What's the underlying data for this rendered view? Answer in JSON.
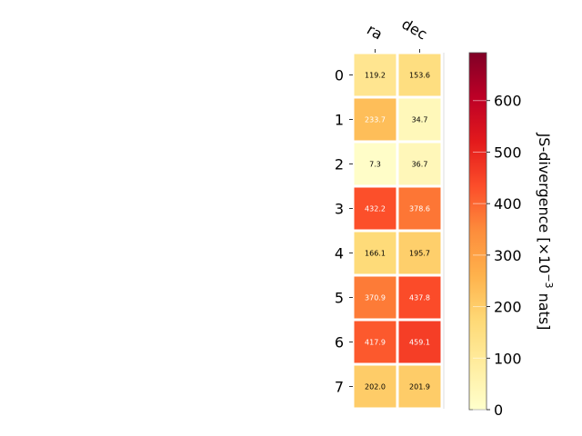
{
  "chart_data": {
    "type": "heatmap",
    "columns": [
      "ra",
      "dec"
    ],
    "rows": [
      "0",
      "1",
      "2",
      "3",
      "4",
      "5",
      "6",
      "7"
    ],
    "values": [
      [
        119.2,
        153.6
      ],
      [
        233.7,
        34.7
      ],
      [
        7.3,
        36.7
      ],
      [
        432.2,
        378.6
      ],
      [
        166.1,
        195.7
      ],
      [
        370.9,
        437.8
      ],
      [
        417.9,
        459.1
      ],
      [
        202.0,
        201.9
      ]
    ],
    "cell_labels": [
      [
        "119.2",
        "153.6"
      ],
      [
        "233.7",
        "34.7"
      ],
      [
        "7.3",
        "36.7"
      ],
      [
        "432.2",
        "378.6"
      ],
      [
        "166.1",
        "195.7"
      ],
      [
        "370.9",
        "437.8"
      ],
      [
        "417.9",
        "459.1"
      ],
      [
        "202.0",
        "201.9"
      ]
    ],
    "colorbar": {
      "label_prefix": "JS-divergence [×10",
      "label_exponent": "−3",
      "label_suffix": " nats]",
      "vmin": 0,
      "vmax": 693,
      "ticks": [
        "0",
        "100",
        "200",
        "300",
        "400",
        "500",
        "600"
      ],
      "colormap": "YlOrRd"
    },
    "colors": {
      "low": "#ffffcc",
      "high": "#800026"
    }
  }
}
